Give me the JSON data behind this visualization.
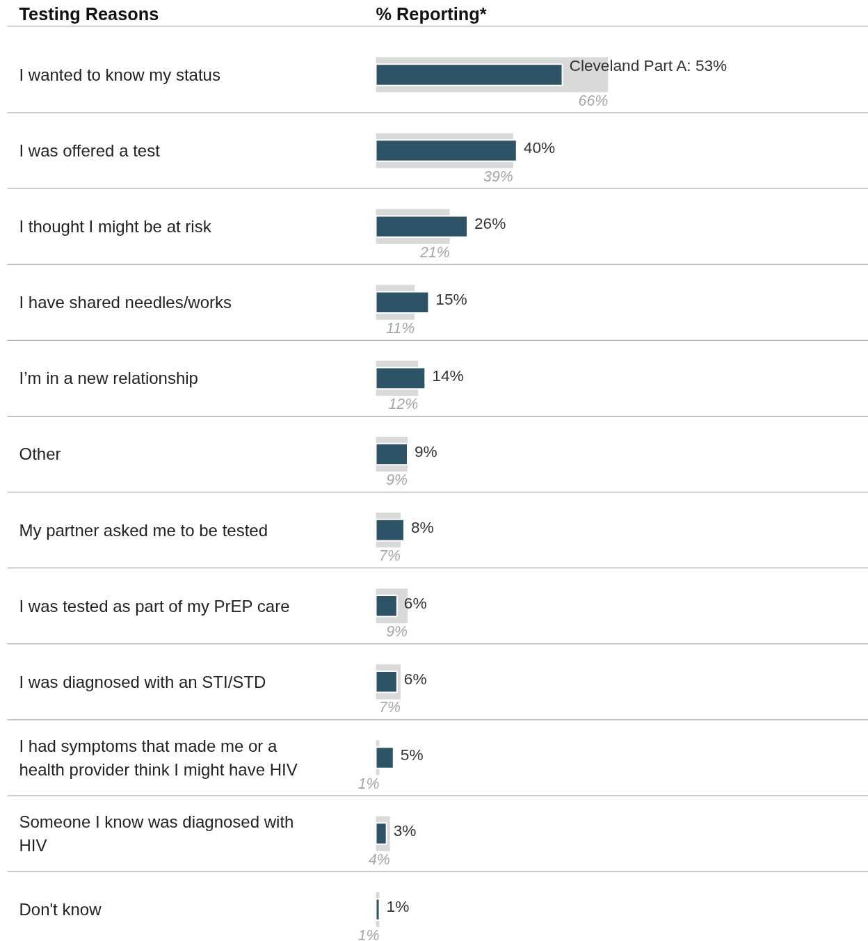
{
  "chart_data": {
    "type": "bar",
    "orientation": "horizontal",
    "ylabel": "Testing Reasons",
    "xlabel": "% Reporting*",
    "xlim": [
      0,
      140
    ],
    "grid": false,
    "categories": [
      "I wanted to know my status",
      "I was offered a test",
      "I thought I might be at risk",
      "I have shared needles/works",
      "I’m in a new relationship",
      "Other",
      "My partner asked me to be tested",
      "I was tested as part of my PrEP care",
      "I was diagnosed with an STI/STD",
      "I had symptoms that made me or a\nhealth provider think I might have HIV",
      "Someone I know was diagnosed with\nHIV",
      "Don't know"
    ],
    "series": [
      {
        "color": "#d9d9d9",
        "values": [
          66,
          39,
          21,
          11,
          12,
          9,
          7,
          9,
          7,
          1,
          4,
          1
        ],
        "value_labels": [
          "66%",
          "39%",
          "21%",
          "11%",
          "12%",
          "9%",
          "7%",
          "9%",
          "7%",
          "1%",
          "4%",
          "1%"
        ]
      },
      {
        "color": "#2e5266",
        "values": [
          53,
          40,
          26,
          15,
          14,
          9,
          8,
          6,
          6,
          5,
          3,
          1
        ],
        "value_labels": [
          "Cleveland Part A: 53%",
          "40%",
          "26%",
          "15%",
          "14%",
          "9%",
          "8%",
          "6%",
          "6%",
          "5%",
          "3%",
          "1%"
        ]
      }
    ]
  }
}
